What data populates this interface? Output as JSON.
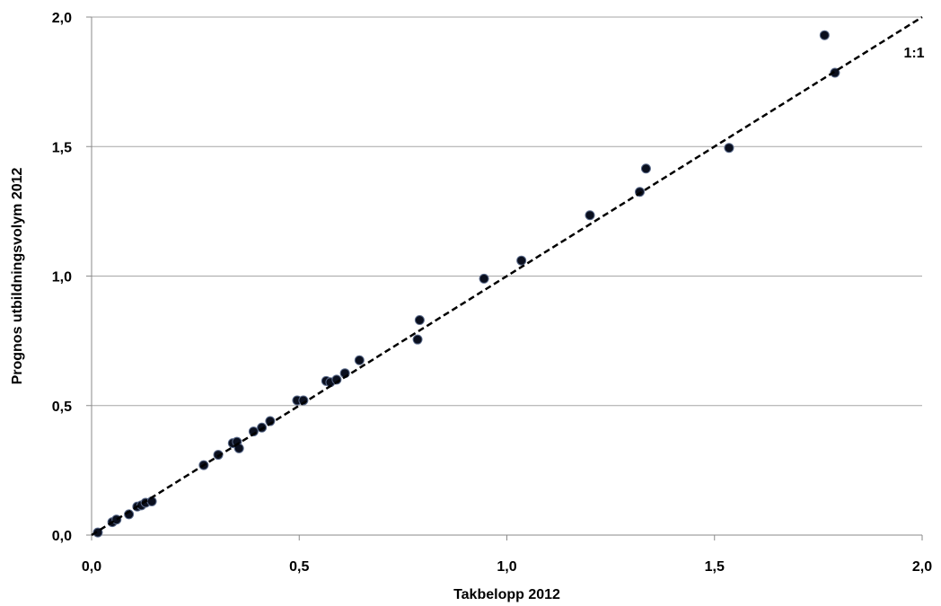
{
  "chart_data": {
    "type": "scatter",
    "xlabel": "Takbelopp 2012",
    "ylabel": "Prognos utbildningsvolym 2012",
    "xlim": [
      0,
      2
    ],
    "ylim": [
      0,
      2
    ],
    "x_ticks": [
      "0,0",
      "0,5",
      "1,0",
      "1,5",
      "2,0"
    ],
    "y_ticks": [
      "0,0",
      "0,5",
      "1,0",
      "1,5",
      "2,0"
    ],
    "grid": "horizontal",
    "reference_line": {
      "label": "1:1",
      "from": [
        0,
        0
      ],
      "to": [
        2,
        2
      ],
      "style": "dashed"
    },
    "series": [
      {
        "marker_color": "#0a0f1e",
        "marker_edge_color": "#5a6a8a",
        "points": [
          [
            0.015,
            0.01
          ],
          [
            0.05,
            0.05
          ],
          [
            0.06,
            0.06
          ],
          [
            0.09,
            0.08
          ],
          [
            0.11,
            0.11
          ],
          [
            0.12,
            0.115
          ],
          [
            0.13,
            0.125
          ],
          [
            0.145,
            0.13
          ],
          [
            0.27,
            0.27
          ],
          [
            0.305,
            0.31
          ],
          [
            0.34,
            0.355
          ],
          [
            0.35,
            0.36
          ],
          [
            0.355,
            0.335
          ],
          [
            0.39,
            0.4
          ],
          [
            0.41,
            0.415
          ],
          [
            0.43,
            0.44
          ],
          [
            0.495,
            0.52
          ],
          [
            0.51,
            0.52
          ],
          [
            0.565,
            0.595
          ],
          [
            0.575,
            0.59
          ],
          [
            0.59,
            0.6
          ],
          [
            0.61,
            0.625
          ],
          [
            0.645,
            0.675
          ],
          [
            0.785,
            0.755
          ],
          [
            0.79,
            0.83
          ],
          [
            0.945,
            0.99
          ],
          [
            1.035,
            1.06
          ],
          [
            1.2,
            1.235
          ],
          [
            1.32,
            1.325
          ],
          [
            1.335,
            1.415
          ],
          [
            1.535,
            1.495
          ],
          [
            1.765,
            1.93
          ],
          [
            1.79,
            1.785
          ]
        ]
      }
    ]
  }
}
